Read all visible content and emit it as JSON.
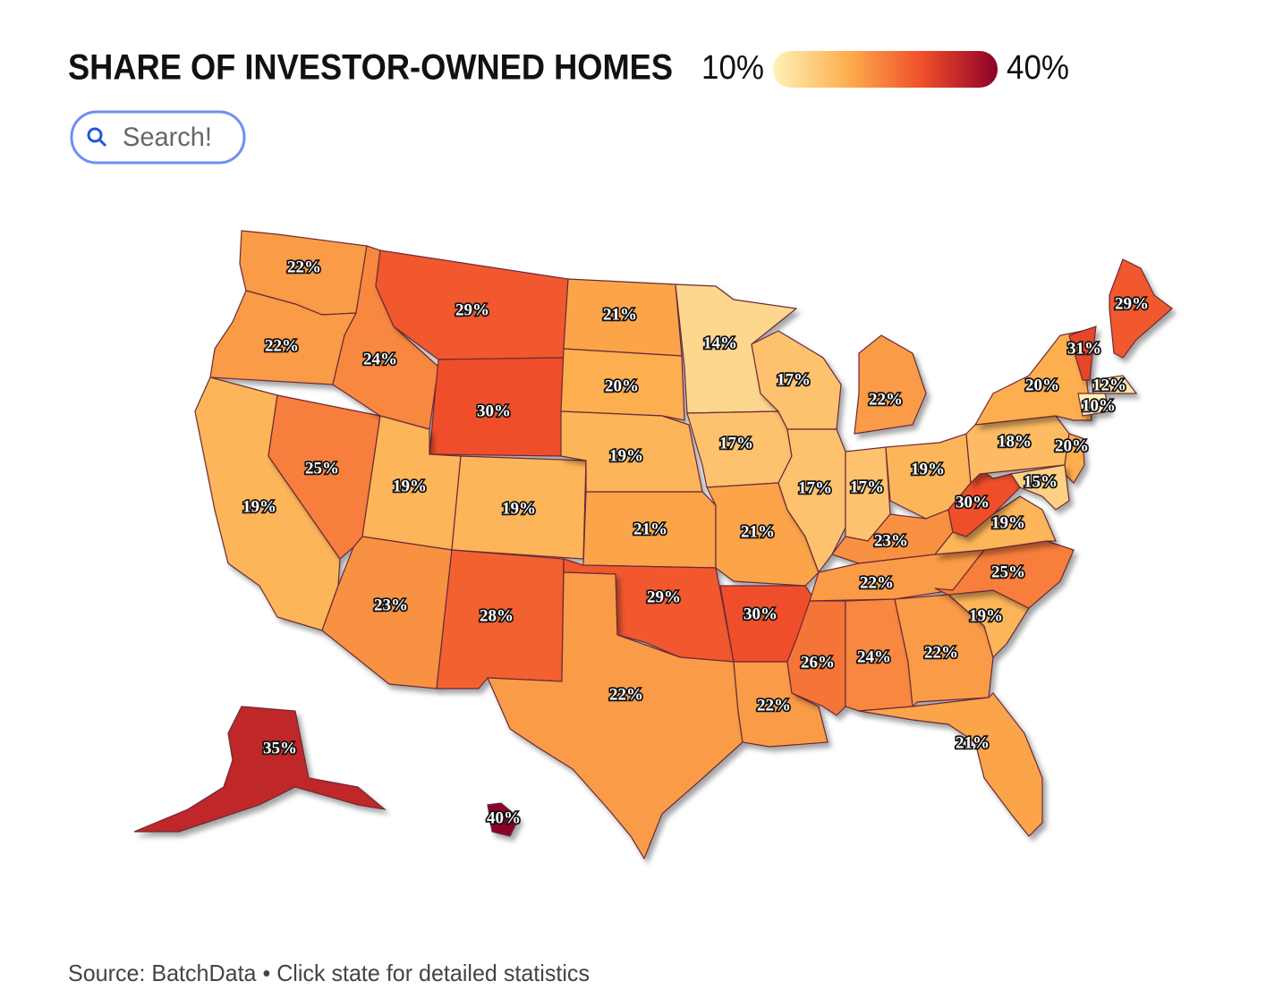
{
  "header": {
    "title": "SHARE OF INVESTOR-OWNED HOMES",
    "search_placeholder": "Search!"
  },
  "chart_data": {
    "type": "choropleth",
    "legend": {
      "min": {
        "value": 10,
        "label": "10%"
      },
      "max": {
        "value": 40,
        "label": "40%"
      }
    },
    "color_scale": [
      "#fff2b8",
      "#fdae4e",
      "#f04e2a",
      "#8e0028"
    ],
    "values": [
      22,
      22,
      19,
      25,
      24,
      29,
      30,
      19,
      19,
      23,
      28,
      21,
      20,
      19,
      21,
      29,
      22,
      14,
      17,
      21,
      30,
      22,
      17,
      17,
      22,
      17,
      19,
      23,
      22,
      26,
      24,
      22,
      21,
      19,
      25,
      19,
      30,
      18,
      20,
      31,
      29,
      12,
      10,
      20,
      15,
      35,
      40
    ],
    "value_labels": [
      "22%",
      "22%",
      "19%",
      "25%",
      "24%",
      "29%",
      "30%",
      "19%",
      "19%",
      "23%",
      "28%",
      "21%",
      "20%",
      "19%",
      "21%",
      "29%",
      "22%",
      "14%",
      "17%",
      "21%",
      "30%",
      "22%",
      "17%",
      "17%",
      "22%",
      "17%",
      "19%",
      "23%",
      "22%",
      "26%",
      "24%",
      "22%",
      "21%",
      "19%",
      "25%",
      "19%",
      "30%",
      "18%",
      "20%",
      "31%",
      "29%",
      "12%",
      "10%",
      "20%",
      "15%",
      "35%",
      "40%"
    ]
  },
  "footer": {
    "source": "Source: BatchData • Click state for detailed statistics"
  }
}
